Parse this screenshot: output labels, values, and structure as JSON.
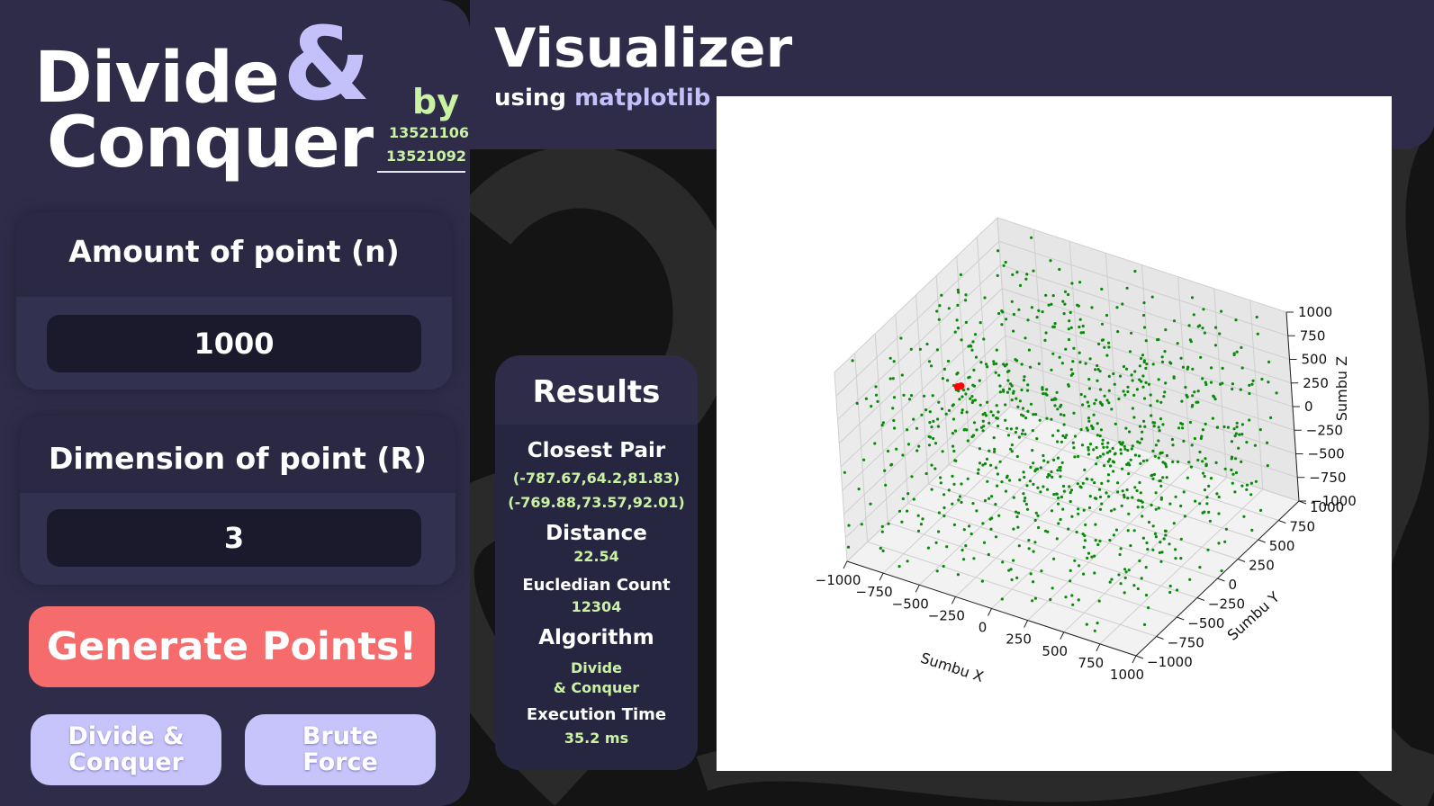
{
  "app": {
    "title_line1": "Divide",
    "title_amp": "&",
    "title_line2": "Conquer",
    "by_label": "by",
    "authors": [
      "13521106",
      "13521092"
    ]
  },
  "inputs": {
    "amount_label": "Amount of point (n)",
    "amount_value": "1000",
    "dimension_label": "Dimension of point (R)",
    "dimension_value": "3"
  },
  "buttons": {
    "generate": "Generate Points!",
    "dnc_line1": "Divide &",
    "dnc_line2": "Conquer",
    "bf_line1": "Brute",
    "bf_line2": "Force"
  },
  "visualizer": {
    "title": "Visualizer",
    "subtitle_prefix": "using",
    "subtitle_lib": "matplotlib"
  },
  "results": {
    "title": "Results",
    "closest_pair_label": "Closest Pair",
    "point1": "(-787.67,64.2,81.83)",
    "point2": "(-769.88,73.57,92.01)",
    "distance_label": "Distance",
    "distance_value": "22.54",
    "euclid_label": "Eucledian Count",
    "euclid_value": "12304",
    "algorithm_label": "Algorithm",
    "algorithm_value_line1": "Divide",
    "algorithm_value_line2": "& Conquer",
    "time_label": "Execution Time",
    "time_value": "35.2 ms"
  },
  "chart_data": {
    "type": "scatter",
    "dimensions": 3,
    "xlabel": "Sumbu X",
    "ylabel": "Sumbu Y",
    "zlabel": "Sumbu Z",
    "xlim": [
      -1000,
      1000
    ],
    "ylim": [
      -1000,
      1000
    ],
    "zlim": [
      -1000,
      1000
    ],
    "x_ticks": [
      "−1000",
      "−750",
      "−500",
      "−250",
      "0",
      "250",
      "500",
      "750",
      "1000"
    ],
    "y_ticks": [
      "−1000",
      "−750",
      "−500",
      "−250",
      "0",
      "250",
      "500",
      "750",
      "1000"
    ],
    "z_ticks": [
      "−1000",
      "−750",
      "−500",
      "−250",
      "0",
      "250",
      "500",
      "750",
      "1000"
    ],
    "point_count": 1000,
    "point_color": "#0a8a0a",
    "highlight_color": "#ff0000",
    "highlight_points": [
      {
        "x": -787.67,
        "y": 64.2,
        "z": 81.83
      },
      {
        "x": -769.88,
        "y": 73.57,
        "z": 92.01
      }
    ],
    "grid": true
  },
  "colors": {
    "panel": "#2e2c48",
    "accent_purple": "#c3c0fa",
    "accent_green": "#c9f2a2",
    "generate_button": "#f66c6c",
    "algo_button": "#c6c4fb"
  }
}
